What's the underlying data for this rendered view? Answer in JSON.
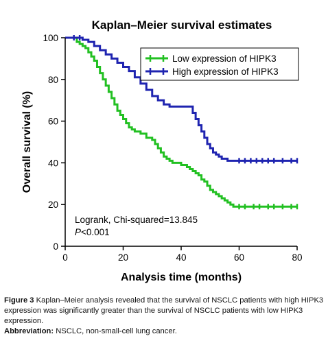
{
  "chart_data": {
    "type": "line",
    "step": true,
    "title": "Kaplan–Meier survival estimates",
    "xlabel": "Analysis time (months)",
    "ylabel": "Overall survival (%)",
    "xlim": [
      0,
      80
    ],
    "ylim": [
      0,
      100
    ],
    "xticks": [
      0,
      20,
      40,
      60,
      80
    ],
    "yticks": [
      0,
      20,
      40,
      60,
      80,
      100
    ],
    "grid": false,
    "legend_position": "top-right",
    "series": [
      {
        "name": "Low expression of HIPK3",
        "color": "#22c022",
        "x": [
          0,
          3,
          4,
          5,
          6,
          7,
          8,
          9,
          10,
          11,
          12,
          13,
          14,
          15,
          16,
          17,
          18,
          19,
          20,
          21,
          22,
          23,
          24,
          25,
          26,
          28,
          30,
          31,
          32,
          33,
          34,
          35,
          36,
          37,
          38,
          40,
          42,
          43,
          44,
          45,
          46,
          47,
          48,
          49,
          50,
          51,
          52,
          53,
          54,
          55,
          56,
          57,
          58,
          80
        ],
        "y": [
          100,
          100,
          98,
          97,
          96,
          95,
          93,
          91,
          89,
          86,
          83,
          80,
          77,
          74,
          71,
          68,
          65,
          63,
          61,
          59,
          57,
          56,
          55,
          55,
          54,
          52,
          51,
          49,
          47,
          45,
          43,
          42,
          41,
          40,
          40,
          39,
          38,
          37,
          36,
          35,
          34,
          32,
          31,
          29,
          27,
          26,
          25,
          24,
          23,
          22,
          21,
          20,
          19,
          19
        ],
        "censored_x": [
          60,
          62,
          65,
          67,
          70,
          72,
          75,
          78,
          80
        ]
      },
      {
        "name": "High expression of HIPK3",
        "color": "#1f24b0",
        "x": [
          0,
          6,
          8,
          10,
          12,
          14,
          16,
          18,
          20,
          22,
          24,
          26,
          28,
          30,
          32,
          34,
          36,
          38,
          40,
          44,
          45,
          46,
          47,
          48,
          49,
          50,
          51,
          52,
          53,
          54,
          55,
          56,
          57,
          58,
          80
        ],
        "y": [
          100,
          99,
          98,
          96,
          94,
          92,
          90,
          88,
          86,
          84,
          81,
          78,
          75,
          72,
          70,
          68,
          67,
          67,
          67,
          64,
          61,
          58,
          55,
          52,
          49,
          47,
          45,
          44,
          43,
          42,
          42,
          41,
          41,
          41,
          41
        ],
        "censored_x": [
          3,
          5,
          60,
          62,
          64,
          66,
          68,
          70,
          72,
          75,
          78,
          80
        ]
      }
    ],
    "annotations": [
      "Logrank, Chi-squared=13.845",
      "P<0.001"
    ]
  },
  "caption": {
    "figure_label": "Figure 3",
    "text": "Kaplan–Meier analysis revealed that the survival of NSCLC patients with high HIPK3 expression was significantly greater than the survival of NSCLC patients with low HIPK3 expression.",
    "abbrev_label": "Abbreviation:",
    "abbrev_text": "NSCLC, non-small-cell lung cancer."
  }
}
